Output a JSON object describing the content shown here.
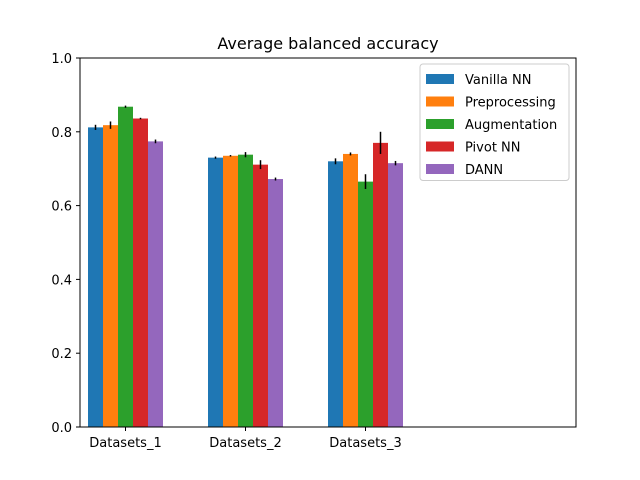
{
  "chart_data": {
    "type": "bar",
    "title": "Average balanced accuracy",
    "xlabel": "",
    "ylabel": "",
    "ylim": [
      0,
      1.0
    ],
    "yticks": [
      "0.0",
      "0.2",
      "0.4",
      "0.6",
      "0.8",
      "1.0"
    ],
    "categories": [
      "Datasets_1",
      "Datasets_2",
      "Datasets_3"
    ],
    "x_span_in_category_slots": 4,
    "grid": false,
    "legend_position": "top-right",
    "series": [
      {
        "name": "Vanilla NN",
        "color": "#1f77b4",
        "values": [
          0.812,
          0.73,
          0.72
        ],
        "errors": [
          0.007,
          0.003,
          0.008
        ]
      },
      {
        "name": "Preprocessing",
        "color": "#ff7f0e",
        "values": [
          0.818,
          0.735,
          0.74
        ],
        "errors": [
          0.01,
          0.002,
          0.004
        ]
      },
      {
        "name": "Augmentation",
        "color": "#2ca02c",
        "values": [
          0.868,
          0.738,
          0.665
        ],
        "errors": [
          0.003,
          0.007,
          0.02
        ]
      },
      {
        "name": "Pivot NN",
        "color": "#d62728",
        "values": [
          0.836,
          0.711,
          0.77
        ],
        "errors": [
          0.002,
          0.012,
          0.03
        ]
      },
      {
        "name": "DANN",
        "color": "#9467bd",
        "values": [
          0.774,
          0.672,
          0.715
        ],
        "errors": [
          0.005,
          0.004,
          0.006
        ]
      }
    ]
  }
}
